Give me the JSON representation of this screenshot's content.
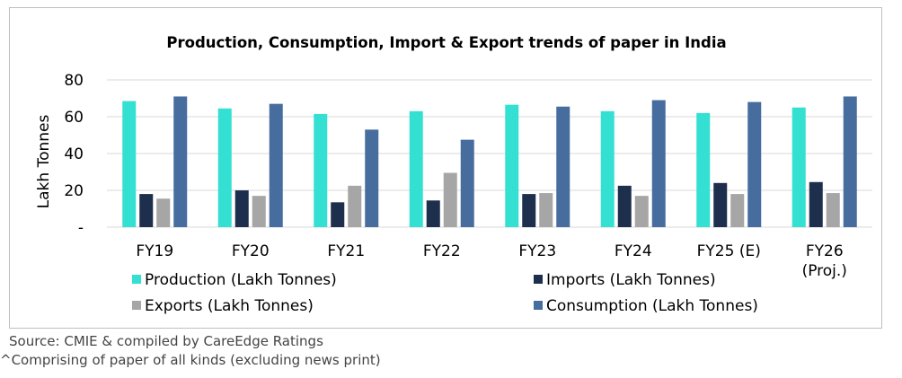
{
  "chart_data": {
    "type": "bar",
    "title": "Production, Consumption, Import & Export trends of paper in India",
    "ylabel": "Lakh Tonnes",
    "xlabel": "",
    "ylim": [
      0,
      80
    ],
    "yticks": [
      0,
      20,
      40,
      60,
      80
    ],
    "ytick_labels": [
      "-",
      "20",
      "40",
      "60",
      "80"
    ],
    "grid": true,
    "legend_position": "bottom",
    "categories": [
      "FY19",
      "FY20",
      "FY21",
      "FY22",
      "FY23",
      "FY24",
      "FY25 (E)",
      "FY26 (Proj.)"
    ],
    "series": [
      {
        "name": "Production (Lakh Tonnes)",
        "color": "#33e0d2",
        "values": [
          68.5,
          64.5,
          61.5,
          63,
          66.5,
          63,
          62,
          65
        ]
      },
      {
        "name": "Imports (Lakh Tonnes)",
        "color": "#1d2f4c",
        "values": [
          18,
          20,
          13.5,
          14.5,
          18,
          22.5,
          24,
          24.5
        ]
      },
      {
        "name": "Exports (Lakh Tonnes)",
        "color": "#a6a6a6",
        "values": [
          15.5,
          17,
          22.5,
          29.5,
          18.5,
          17,
          18,
          18.5
        ]
      },
      {
        "name": "Consumption (Lakh Tonnes)",
        "color": "#466d9e",
        "values": [
          71,
          67,
          53,
          47.5,
          65.5,
          69,
          68,
          71
        ]
      }
    ]
  },
  "footnotes": {
    "source": "Source: CMIE & compiled by CareEdge Ratings",
    "note": "^Comprising of paper of all kinds (excluding news print)"
  }
}
